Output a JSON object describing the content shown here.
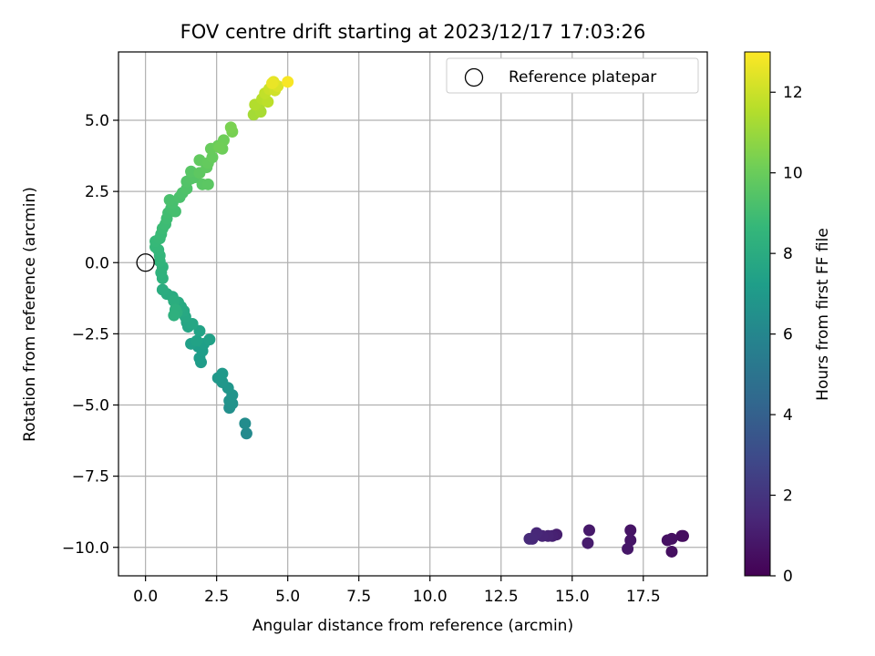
{
  "chart_data": {
    "type": "scatter",
    "title": "FOV centre drift starting at 2023/12/17 17:03:26",
    "xlabel": "Angular distance from reference (arcmin)",
    "ylabel": "Rotation from reference (arcmin)",
    "xlim": [
      -0.95,
      19.75
    ],
    "ylim": [
      -11.0,
      7.4
    ],
    "xticks": [
      0.0,
      2.5,
      5.0,
      7.5,
      10.0,
      12.5,
      15.0,
      17.5
    ],
    "xtick_labels": [
      "0.0",
      "2.5",
      "5.0",
      "7.5",
      "10.0",
      "12.5",
      "15.0",
      "17.5"
    ],
    "yticks": [
      5.0,
      2.5,
      0.0,
      -2.5,
      -5.0,
      -7.5,
      -10.0
    ],
    "ytick_labels": [
      "5.0",
      "2.5",
      "0.0",
      "−2.5",
      "−5.0",
      "−7.5",
      "−10.0"
    ],
    "grid": true,
    "legend": {
      "placement": "top-right",
      "entries": [
        "Reference platepar"
      ]
    },
    "reference_point": {
      "x": 0.0,
      "y": 0.0
    },
    "colorbar": {
      "label": "Hours from first FF file",
      "colormap": "viridis",
      "range": [
        0,
        13
      ],
      "ticks": [
        0,
        2,
        4,
        6,
        8,
        10,
        12
      ],
      "tick_labels": [
        "0",
        "2",
        "4",
        "6",
        "8",
        "10",
        "12"
      ],
      "colors": [
        "#440154",
        "#482878",
        "#3e4989",
        "#31688e",
        "#26828e",
        "#1f9e89",
        "#35b779",
        "#6ece58",
        "#b5de2b",
        "#fde725"
      ]
    },
    "points": [
      {
        "x": 18.9,
        "y": -9.6,
        "h": 0.4
      },
      {
        "x": 18.85,
        "y": -9.6,
        "h": 0.45
      },
      {
        "x": 18.5,
        "y": -10.15,
        "h": 0.5
      },
      {
        "x": 18.5,
        "y": -9.7,
        "h": 0.55
      },
      {
        "x": 18.35,
        "y": -9.75,
        "h": 0.6
      },
      {
        "x": 17.05,
        "y": -9.4,
        "h": 0.7
      },
      {
        "x": 17.05,
        "y": -9.75,
        "h": 0.75
      },
      {
        "x": 16.95,
        "y": -10.05,
        "h": 0.8
      },
      {
        "x": 15.6,
        "y": -9.4,
        "h": 0.9
      },
      {
        "x": 15.55,
        "y": -9.85,
        "h": 1.0
      },
      {
        "x": 14.45,
        "y": -9.55,
        "h": 1.1
      },
      {
        "x": 14.3,
        "y": -9.6,
        "h": 1.2
      },
      {
        "x": 14.15,
        "y": -9.6,
        "h": 1.3
      },
      {
        "x": 13.95,
        "y": -9.6,
        "h": 1.35
      },
      {
        "x": 13.75,
        "y": -9.5,
        "h": 1.45
      },
      {
        "x": 13.6,
        "y": -9.7,
        "h": 1.5
      },
      {
        "x": 13.5,
        "y": -9.7,
        "h": 1.55
      },
      {
        "x": 3.55,
        "y": -6.0,
        "h": 6.2
      },
      {
        "x": 3.5,
        "y": -5.65,
        "h": 6.3
      },
      {
        "x": 2.95,
        "y": -5.1,
        "h": 6.5
      },
      {
        "x": 3.05,
        "y": -4.95,
        "h": 6.6
      },
      {
        "x": 2.95,
        "y": -4.85,
        "h": 6.65
      },
      {
        "x": 3.05,
        "y": -4.65,
        "h": 6.7
      },
      {
        "x": 2.9,
        "y": -4.4,
        "h": 6.8
      },
      {
        "x": 2.7,
        "y": -4.2,
        "h": 6.85
      },
      {
        "x": 2.55,
        "y": -4.05,
        "h": 6.9
      },
      {
        "x": 2.7,
        "y": -3.9,
        "h": 6.95
      },
      {
        "x": 1.95,
        "y": -3.5,
        "h": 7.1
      },
      {
        "x": 1.9,
        "y": -3.35,
        "h": 7.15
      },
      {
        "x": 2.0,
        "y": -3.1,
        "h": 7.2
      },
      {
        "x": 1.85,
        "y": -2.95,
        "h": 7.25
      },
      {
        "x": 2.05,
        "y": -2.85,
        "h": 7.3
      },
      {
        "x": 1.6,
        "y": -2.85,
        "h": 7.35
      },
      {
        "x": 2.25,
        "y": -2.7,
        "h": 7.4
      },
      {
        "x": 1.8,
        "y": -2.75,
        "h": 7.45
      },
      {
        "x": 1.9,
        "y": -2.4,
        "h": 7.5
      },
      {
        "x": 1.5,
        "y": -2.25,
        "h": 7.6
      },
      {
        "x": 1.45,
        "y": -2.1,
        "h": 7.65
      },
      {
        "x": 1.65,
        "y": -2.15,
        "h": 7.7
      },
      {
        "x": 1.4,
        "y": -1.9,
        "h": 7.75
      },
      {
        "x": 1.35,
        "y": -1.7,
        "h": 7.8
      },
      {
        "x": 1.25,
        "y": -1.55,
        "h": 7.85
      },
      {
        "x": 1.15,
        "y": -1.4,
        "h": 7.9
      },
      {
        "x": 0.95,
        "y": -1.2,
        "h": 7.95
      },
      {
        "x": 0.75,
        "y": -1.1,
        "h": 8.0
      },
      {
        "x": 0.6,
        "y": -0.95,
        "h": 8.05
      },
      {
        "x": 1.0,
        "y": -1.35,
        "h": 8.1
      },
      {
        "x": 1.1,
        "y": -1.75,
        "h": 8.15
      },
      {
        "x": 1.05,
        "y": -1.65,
        "h": 8.2
      },
      {
        "x": 1.0,
        "y": -1.85,
        "h": 8.25
      },
      {
        "x": 0.6,
        "y": -0.55,
        "h": 8.3
      },
      {
        "x": 0.55,
        "y": -0.35,
        "h": 8.35
      },
      {
        "x": 0.6,
        "y": -0.15,
        "h": 8.4
      },
      {
        "x": 0.5,
        "y": 0.05,
        "h": 8.5
      },
      {
        "x": 0.5,
        "y": 0.25,
        "h": 8.55
      },
      {
        "x": 0.45,
        "y": 0.45,
        "h": 8.6
      },
      {
        "x": 0.35,
        "y": 0.55,
        "h": 8.65
      },
      {
        "x": 0.35,
        "y": 0.75,
        "h": 8.7
      },
      {
        "x": 0.5,
        "y": 0.85,
        "h": 8.75
      },
      {
        "x": 0.55,
        "y": 1.0,
        "h": 8.8
      },
      {
        "x": 0.6,
        "y": 1.2,
        "h": 8.85
      },
      {
        "x": 0.7,
        "y": 1.35,
        "h": 8.9
      },
      {
        "x": 0.75,
        "y": 1.55,
        "h": 8.95
      },
      {
        "x": 0.8,
        "y": 1.75,
        "h": 9.0
      },
      {
        "x": 0.9,
        "y": 1.9,
        "h": 9.05
      },
      {
        "x": 1.05,
        "y": 1.8,
        "h": 9.1
      },
      {
        "x": 0.95,
        "y": 2.1,
        "h": 9.15
      },
      {
        "x": 0.85,
        "y": 2.2,
        "h": 9.2
      },
      {
        "x": 1.2,
        "y": 2.3,
        "h": 9.25
      },
      {
        "x": 1.3,
        "y": 2.45,
        "h": 9.3
      },
      {
        "x": 1.45,
        "y": 2.6,
        "h": 9.35
      },
      {
        "x": 1.45,
        "y": 2.85,
        "h": 9.4
      },
      {
        "x": 1.6,
        "y": 2.95,
        "h": 9.45
      },
      {
        "x": 1.75,
        "y": 3.0,
        "h": 9.5
      },
      {
        "x": 1.6,
        "y": 3.2,
        "h": 9.55
      },
      {
        "x": 2.0,
        "y": 2.75,
        "h": 9.6
      },
      {
        "x": 2.2,
        "y": 2.75,
        "h": 9.65
      },
      {
        "x": 1.9,
        "y": 3.15,
        "h": 9.7
      },
      {
        "x": 2.15,
        "y": 3.35,
        "h": 9.75
      },
      {
        "x": 1.9,
        "y": 3.6,
        "h": 9.8
      },
      {
        "x": 2.2,
        "y": 3.5,
        "h": 9.85
      },
      {
        "x": 2.35,
        "y": 3.7,
        "h": 9.9
      },
      {
        "x": 2.3,
        "y": 4.0,
        "h": 9.95
      },
      {
        "x": 2.55,
        "y": 4.1,
        "h": 10.0
      },
      {
        "x": 2.7,
        "y": 4.0,
        "h": 10.05
      },
      {
        "x": 2.75,
        "y": 4.3,
        "h": 10.1
      },
      {
        "x": 2.6,
        "y": 4.05,
        "h": 10.15
      },
      {
        "x": 3.05,
        "y": 4.6,
        "h": 10.3
      },
      {
        "x": 3.0,
        "y": 4.75,
        "h": 10.35
      },
      {
        "x": 3.8,
        "y": 5.2,
        "h": 11.2
      },
      {
        "x": 4.05,
        "y": 5.3,
        "h": 11.3
      },
      {
        "x": 4.0,
        "y": 5.55,
        "h": 11.4
      },
      {
        "x": 3.85,
        "y": 5.55,
        "h": 11.5
      },
      {
        "x": 4.1,
        "y": 5.75,
        "h": 11.6
      },
      {
        "x": 4.3,
        "y": 5.65,
        "h": 11.7
      },
      {
        "x": 4.2,
        "y": 5.95,
        "h": 11.8
      },
      {
        "x": 4.35,
        "y": 6.1,
        "h": 12.0
      },
      {
        "x": 4.55,
        "y": 6.05,
        "h": 12.1
      },
      {
        "x": 4.65,
        "y": 6.2,
        "h": 12.3
      },
      {
        "x": 4.5,
        "y": 6.35,
        "h": 12.5
      },
      {
        "x": 4.45,
        "y": 6.3,
        "h": 12.6
      },
      {
        "x": 5.0,
        "y": 6.35,
        "h": 12.9
      }
    ]
  }
}
